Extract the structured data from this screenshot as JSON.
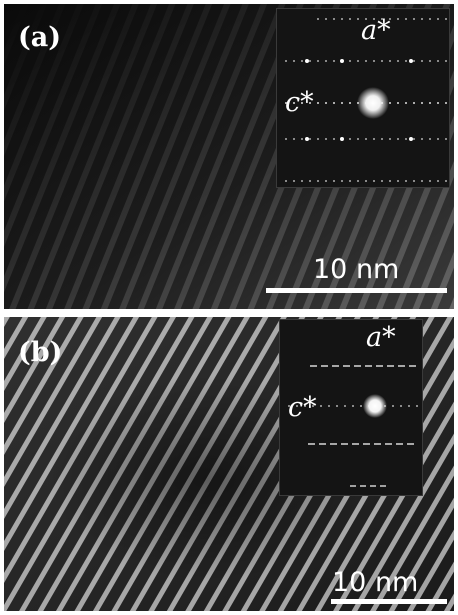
{
  "panels": [
    {
      "label": "(a)",
      "inset": {
        "axis_top": "a*",
        "axis_left": "c*"
      },
      "scale_bar": "10 nm"
    },
    {
      "label": "(b)",
      "inset": {
        "axis_top": "a*",
        "axis_left": "c*"
      },
      "scale_bar": "10 nm"
    }
  ],
  "colors": {
    "background": "#000000",
    "text": "#ffffff"
  }
}
